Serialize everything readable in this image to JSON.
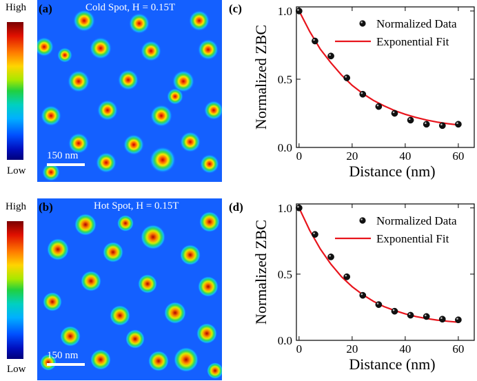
{
  "colorbar": {
    "high_label": "High",
    "low_label": "Low"
  },
  "panels": {
    "a": {
      "letter": "(a)",
      "title": "Cold Spot, H = 0.15T",
      "scale_label": "150 nm"
    },
    "b": {
      "letter": "(b)",
      "title": "Hot Spot, H = 0.15T",
      "scale_label": "150 nm"
    },
    "c": {
      "letter": "(c)"
    },
    "d": {
      "letter": "(d)"
    }
  },
  "chart_data": [
    {
      "type": "scatter",
      "panel": "c",
      "xlabel": "Distance (nm)",
      "ylabel": "Normalized ZBC",
      "xlim": [
        -1,
        66
      ],
      "ylim": [
        0,
        1.03
      ],
      "xticks": [
        0,
        20,
        40,
        60
      ],
      "xtick_labels": [
        "0",
        "20",
        "40",
        "60"
      ],
      "yticks": [
        0.0,
        0.5,
        1.0
      ],
      "ytick_labels": [
        "0.0",
        "0.5",
        "1.0"
      ],
      "legend": [
        "Normalized Data",
        "Exponential Fit"
      ],
      "legend_position": "top-right",
      "series": [
        {
          "name": "Normalized Data",
          "kind": "points",
          "x": [
            0,
            6,
            12,
            18,
            24,
            30,
            36,
            42,
            48,
            54,
            60
          ],
          "y": [
            1.0,
            0.78,
            0.67,
            0.51,
            0.39,
            0.3,
            0.25,
            0.2,
            0.17,
            0.16,
            0.17
          ]
        },
        {
          "name": "Exponential Fit",
          "kind": "line",
          "color": "#e8141c",
          "x": [
            0,
            4,
            8,
            12,
            16,
            20,
            24,
            28,
            32,
            36,
            40,
            44,
            48,
            52,
            56,
            60
          ],
          "y": [
            1.0,
            0.85,
            0.72,
            0.62,
            0.53,
            0.455,
            0.395,
            0.345,
            0.305,
            0.27,
            0.243,
            0.22,
            0.201,
            0.186,
            0.174,
            0.165
          ]
        }
      ]
    },
    {
      "type": "scatter",
      "panel": "d",
      "xlabel": "Distance (nm)",
      "ylabel": "Normalized ZBC",
      "xlim": [
        -1,
        66
      ],
      "ylim": [
        0,
        1.03
      ],
      "xticks": [
        0,
        20,
        40,
        60
      ],
      "xtick_labels": [
        "0",
        "20",
        "40",
        "60"
      ],
      "yticks": [
        0.0,
        0.5,
        1.0
      ],
      "ytick_labels": [
        "0.0",
        "0.5",
        "1.0"
      ],
      "legend": [
        "Normalized Data",
        "Exponential Fit"
      ],
      "legend_position": "top-right",
      "series": [
        {
          "name": "Normalized Data",
          "kind": "points",
          "x": [
            0,
            6,
            12,
            18,
            24,
            30,
            36,
            42,
            48,
            54,
            60
          ],
          "y": [
            1.0,
            0.8,
            0.63,
            0.48,
            0.34,
            0.27,
            0.22,
            0.19,
            0.18,
            0.16,
            0.155
          ]
        },
        {
          "name": "Exponential Fit",
          "kind": "line",
          "color": "#e8141c",
          "x": [
            0,
            4,
            8,
            12,
            16,
            20,
            24,
            28,
            32,
            36,
            40,
            44,
            48,
            52,
            56,
            60
          ],
          "y": [
            1.0,
            0.83,
            0.69,
            0.575,
            0.48,
            0.405,
            0.345,
            0.295,
            0.255,
            0.225,
            0.2,
            0.18,
            0.165,
            0.153,
            0.144,
            0.137
          ]
        }
      ]
    }
  ]
}
